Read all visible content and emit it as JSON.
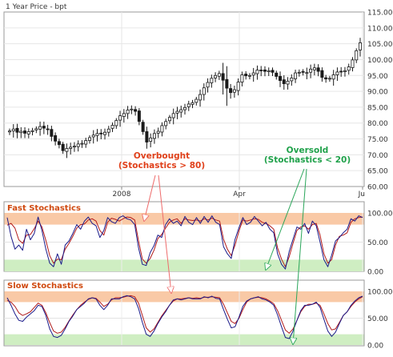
{
  "chart_data": [
    {
      "type": "candlestick",
      "title": "1 Year Price - bpt",
      "x_tick_labels": [
        "2008",
        "Apr",
        "Ju"
      ],
      "y_ticks": [
        115,
        110,
        105,
        100,
        95,
        90,
        85,
        80,
        75,
        70,
        65,
        60
      ],
      "y_tick_labels": [
        "115.00",
        "110.00",
        "105.00",
        "100.00",
        "95.00",
        "90.00",
        "85.00",
        "80.00",
        "75.00",
        "70.00",
        "65.00",
        "60.00"
      ],
      "ylim": [
        60,
        115
      ],
      "grid": true,
      "close": [
        77.5,
        78.1,
        77.1,
        77.4,
        76.8,
        77.3,
        77.6,
        78.2,
        78.9,
        78.4,
        78.0,
        75.8,
        74.3,
        73.2,
        71.3,
        72.0,
        72.4,
        72.7,
        73.4,
        73.6,
        74.5,
        75.4,
        76.2,
        76.7,
        76.6,
        77.1,
        78.1,
        79.3,
        80.8,
        82.3,
        83.0,
        84.1,
        84.4,
        83.7,
        80.5,
        77.3,
        74.0,
        75.3,
        76.7,
        77.4,
        79.2,
        80.5,
        81.8,
        83.0,
        83.7,
        84.2,
        84.9,
        86.0,
        86.4,
        87.5,
        89.0,
        91.1,
        92.8,
        94.1,
        95.0,
        95.6,
        93.5,
        91.0,
        89.6,
        90.5,
        92.9,
        95.2,
        94.9,
        95.0,
        95.8,
        96.7,
        96.5,
        96.3,
        96.5,
        96.0,
        94.7,
        93.4,
        92.4,
        93.2,
        94.2,
        95.8,
        96.0,
        96.0,
        95.9,
        97.0,
        97.4,
        96.3,
        94.4,
        93.9,
        94.1,
        95.2,
        96.1,
        96.3,
        96.5,
        97.7,
        99.9,
        102.8,
        105.3
      ],
      "annotations": [
        {
          "text": [
            "Overbought",
            "(Stochastics > 80)"
          ],
          "color": "#e0401a"
        },
        {
          "text": [
            "Oversold",
            "(Stochastics < 20)"
          ],
          "color": "#1fa14a"
        }
      ]
    },
    {
      "type": "line",
      "title": "Fast Stochastics",
      "y_tick_labels": [
        "100.00",
        "50.00",
        "0.00"
      ],
      "ylim": [
        0,
        100
      ],
      "bands": [
        {
          "from": 80,
          "to": 100,
          "color": "#f9c9a6"
        },
        {
          "from": 0,
          "to": 20,
          "color": "#cfeec2"
        }
      ],
      "series": [
        {
          "color": "#b21a1a",
          "values": [
            79,
            82,
            74,
            54,
            48,
            62,
            63,
            73,
            86,
            76,
            53,
            27,
            14,
            21,
            20,
            38,
            48,
            60,
            74,
            80,
            81,
            88,
            90,
            86,
            70,
            62,
            84,
            91,
            89,
            86,
            90,
            93,
            92,
            88,
            52,
            21,
            14,
            22,
            36,
            56,
            63,
            74,
            84,
            88,
            90,
            82,
            90,
            88,
            87,
            88,
            86,
            90,
            88,
            91,
            88,
            86,
            55,
            38,
            27,
            45,
            69,
            88,
            86,
            88,
            90,
            89,
            84,
            82,
            78,
            72,
            40,
            21,
            8,
            25,
            48,
            70,
            76,
            78,
            72,
            80,
            82,
            62,
            30,
            14,
            20,
            45,
            60,
            62,
            66,
            84,
            90,
            92,
            93
          ]
        },
        {
          "color": "#1a1a8a",
          "values": [
            92,
            60,
            38,
            45,
            36,
            72,
            54,
            65,
            93,
            70,
            38,
            14,
            8,
            30,
            12,
            45,
            52,
            65,
            80,
            72,
            86,
            93,
            82,
            78,
            58,
            70,
            92,
            85,
            82,
            92,
            95,
            90,
            88,
            80,
            40,
            12,
            10,
            32,
            44,
            62,
            58,
            80,
            90,
            82,
            86,
            78,
            94,
            84,
            80,
            92,
            82,
            94,
            84,
            95,
            84,
            80,
            42,
            30,
            22,
            55,
            75,
            92,
            80,
            84,
            94,
            86,
            78,
            84,
            72,
            66,
            30,
            12,
            4,
            34,
            55,
            76,
            72,
            82,
            65,
            86,
            78,
            50,
            20,
            8,
            28,
            52,
            58,
            66,
            72,
            90,
            86,
            95,
            92
          ]
        }
      ]
    },
    {
      "type": "line",
      "title": "Slow Stochastics",
      "y_tick_labels": [
        "100.00",
        "50.00",
        "0.00"
      ],
      "ylim": [
        0,
        100
      ],
      "bands": [
        {
          "from": 80,
          "to": 100,
          "color": "#f9c9a6"
        },
        {
          "from": 0,
          "to": 20,
          "color": "#cfeec2"
        }
      ],
      "series": [
        {
          "color": "#b21a1a",
          "values": [
            83,
            80,
            72,
            60,
            55,
            58,
            62,
            70,
            78,
            74,
            60,
            42,
            26,
            22,
            24,
            33,
            45,
            56,
            66,
            74,
            80,
            85,
            88,
            87,
            80,
            72,
            76,
            84,
            88,
            88,
            89,
            91,
            92,
            90,
            78,
            55,
            32,
            24,
            30,
            42,
            54,
            64,
            74,
            82,
            86,
            86,
            87,
            88,
            87,
            88,
            87,
            89,
            89,
            90,
            89,
            88,
            76,
            60,
            44,
            40,
            50,
            66,
            80,
            86,
            88,
            89,
            88,
            86,
            82,
            77,
            64,
            46,
            28,
            22,
            30,
            46,
            62,
            72,
            76,
            76,
            78,
            74,
            58,
            40,
            28,
            30,
            42,
            55,
            62,
            72,
            80,
            86,
            90
          ]
        },
        {
          "color": "#1a1a8a",
          "values": [
            88,
            74,
            58,
            46,
            44,
            52,
            58,
            64,
            74,
            72,
            55,
            30,
            16,
            14,
            18,
            30,
            44,
            54,
            66,
            72,
            78,
            86,
            88,
            86,
            74,
            66,
            74,
            86,
            86,
            86,
            90,
            92,
            90,
            86,
            68,
            42,
            20,
            16,
            26,
            40,
            52,
            62,
            74,
            84,
            86,
            84,
            86,
            88,
            86,
            86,
            86,
            90,
            88,
            91,
            87,
            86,
            66,
            48,
            32,
            34,
            52,
            72,
            82,
            86,
            88,
            90,
            86,
            84,
            80,
            74,
            56,
            34,
            14,
            12,
            26,
            46,
            64,
            74,
            74,
            76,
            80,
            70,
            48,
            26,
            16,
            24,
            40,
            55,
            62,
            74,
            82,
            88,
            91
          ]
        }
      ]
    }
  ]
}
